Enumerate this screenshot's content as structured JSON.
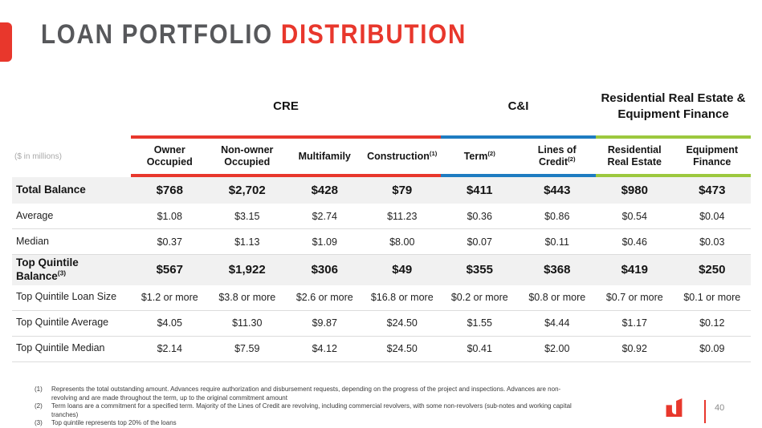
{
  "header": {
    "title_part1": "LOAN PORTFOLIO",
    "title_part2": "DISTRIBUTION"
  },
  "colors": {
    "accent_red": "#e8372c",
    "cre_red": "#e8372c",
    "ci_blue": "#1e7cc1",
    "rre_green": "#9cc83e"
  },
  "table": {
    "unit_label": "($ in millions)",
    "groups": [
      {
        "label": "CRE",
        "span": 4,
        "color": "#e8372c"
      },
      {
        "label": "C&I",
        "span": 2,
        "color": "#1e7cc1"
      },
      {
        "label": "Residential Real Estate & Equipment Finance",
        "span": 2,
        "color": "#9cc83e"
      }
    ],
    "columns": [
      {
        "label": "Owner Occupied",
        "sup": ""
      },
      {
        "label": "Non-owner Occupied",
        "sup": ""
      },
      {
        "label": "Multifamily",
        "sup": ""
      },
      {
        "label": "Construction",
        "sup": "(1)"
      },
      {
        "label": "Term",
        "sup": "(2)"
      },
      {
        "label": "Lines of Credit",
        "sup": "(2)"
      },
      {
        "label": "Residential Real Estate",
        "sup": ""
      },
      {
        "label": "Equipment Finance",
        "sup": ""
      }
    ],
    "rows": [
      {
        "label": "Total Balance",
        "sup": "",
        "emphasis": true,
        "values": [
          "$768",
          "$2,702",
          "$428",
          "$79",
          "$411",
          "$443",
          "$980",
          "$473"
        ]
      },
      {
        "label": "Average",
        "sup": "",
        "emphasis": false,
        "values": [
          "$1.08",
          "$3.15",
          "$2.74",
          "$11.23",
          "$0.36",
          "$0.86",
          "$0.54",
          "$0.04"
        ]
      },
      {
        "label": "Median",
        "sup": "",
        "emphasis": false,
        "values": [
          "$0.37",
          "$1.13",
          "$1.09",
          "$8.00",
          "$0.07",
          "$0.11",
          "$0.46",
          "$0.03"
        ]
      },
      {
        "label": "Top Quintile Balance",
        "sup": "(3)",
        "emphasis": true,
        "values": [
          "$567",
          "$1,922",
          "$306",
          "$49",
          "$355",
          "$368",
          "$419",
          "$250"
        ]
      },
      {
        "label": "Top Quintile Loan Size",
        "sup": "",
        "emphasis": false,
        "values": [
          "$1.2 or more",
          "$3.8 or more",
          "$2.6 or more",
          "$16.8 or more",
          "$0.2 or more",
          "$0.8 or more",
          "$0.7 or more",
          "$0.1 or more"
        ]
      },
      {
        "label": "Top Quintile Average",
        "sup": "",
        "emphasis": false,
        "values": [
          "$4.05",
          "$11.30",
          "$9.87",
          "$24.50",
          "$1.55",
          "$4.44",
          "$1.17",
          "$0.12"
        ]
      },
      {
        "label": "Top Quintile Median",
        "sup": "",
        "emphasis": false,
        "values": [
          "$2.14",
          "$7.59",
          "$4.12",
          "$24.50",
          "$0.41",
          "$2.00",
          "$0.92",
          "$0.09"
        ]
      }
    ]
  },
  "footnotes": [
    {
      "num": "(1)",
      "text": "Represents the total outstanding amount. Advances require authorization and disbursement requests, depending on the progress of the project and inspections. Advances are non-revolving and are made throughout the term, up to the original commitment amount"
    },
    {
      "num": "(2)",
      "text": "Term loans are a commitment for a specified term. Majority of the Lines of Credit are revolving, including commercial revolvers, with some non-revolvers (sub-notes and working capital tranches)"
    },
    {
      "num": "(3)",
      "text": "Top quintile represents top 20% of the loans"
    }
  ],
  "footer": {
    "page_number": "40",
    "logo_name": "bank-logo"
  }
}
